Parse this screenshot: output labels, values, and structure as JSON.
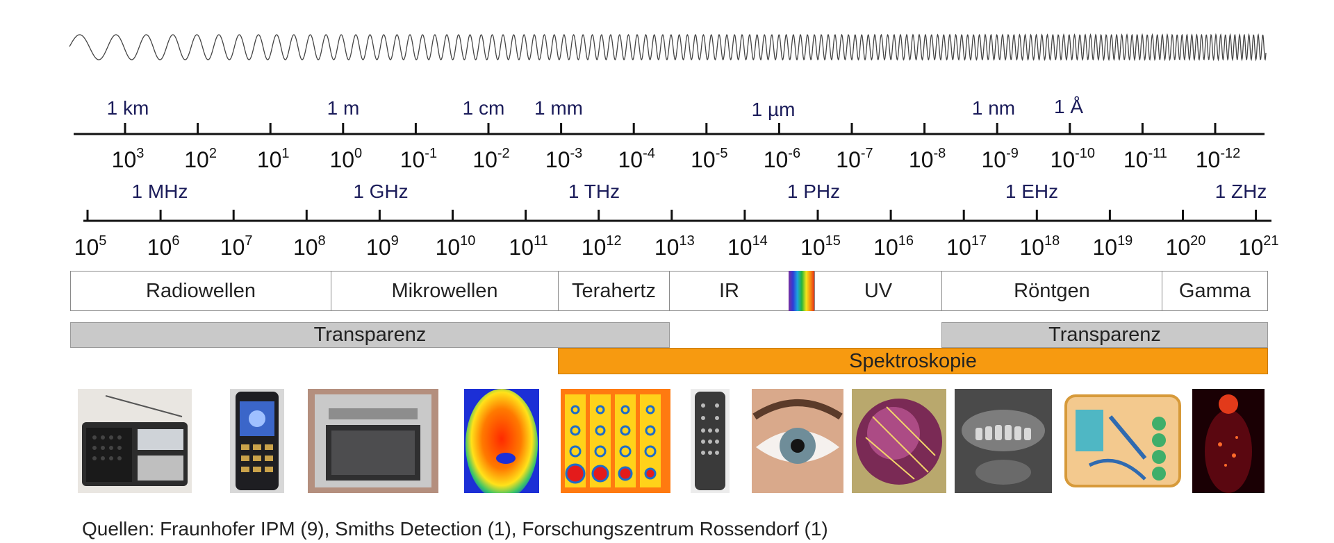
{
  "wavelength_units": [
    {
      "label": "1 km"
    },
    {
      "label": "1 m"
    },
    {
      "label": "1 cm"
    },
    {
      "label": "1 mm"
    },
    {
      "label": "1 µm"
    },
    {
      "label": "1 nm"
    },
    {
      "label": "1 Å"
    }
  ],
  "wavelength_exponents": [
    "3",
    "2",
    "1",
    "0",
    "-1",
    "-2",
    "-3",
    "-4",
    "-5",
    "-6",
    "-7",
    "-8",
    "-9",
    "-10",
    "-11",
    "-12"
  ],
  "frequency_units": [
    {
      "label": "1 MHz"
    },
    {
      "label": "1 GHz"
    },
    {
      "label": "1 THz"
    },
    {
      "label": "1 PHz"
    },
    {
      "label": "1 EHz"
    },
    {
      "label": "1 ZHz"
    }
  ],
  "frequency_exponents": [
    "5",
    "6",
    "7",
    "8",
    "9",
    "10",
    "11",
    "12",
    "13",
    "14",
    "15",
    "16",
    "17",
    "18",
    "19",
    "20",
    "21"
  ],
  "power_base": "10",
  "bands": [
    {
      "label": "Radiowellen"
    },
    {
      "label": "Mikrowellen"
    },
    {
      "label": "Terahertz"
    },
    {
      "label": "IR"
    },
    {
      "label": "UV"
    },
    {
      "label": "Röntgen"
    },
    {
      "label": "Gamma"
    }
  ],
  "bars": {
    "transparenz_left": "Transparenz",
    "transparenz_right": "Transparenz",
    "spektroskopie": "Spektroskopie"
  },
  "visible_spectrum_colors": [
    "#7b2fa0",
    "#2f3bd6",
    "#1da3e0",
    "#27b53a",
    "#f2e51b",
    "#f58a12",
    "#e0221a"
  ],
  "band_line_color": "#8a8a8a",
  "photos": [
    {
      "icon": "radio-image"
    },
    {
      "icon": "mobile-phone-image"
    },
    {
      "icon": "microwave-oven-image"
    },
    {
      "icon": "thermal-image"
    },
    {
      "icon": "terahertz-scan-image"
    },
    {
      "icon": "remote-control-image"
    },
    {
      "icon": "eye-image"
    },
    {
      "icon": "uv-wafer-image"
    },
    {
      "icon": "dental-xray-image"
    },
    {
      "icon": "luggage-xray-image"
    },
    {
      "icon": "pet-scan-image"
    }
  ],
  "sources": "Quellen: Fraunhofer IPM (9), Smiths Detection (1), Forschungszentrum Rossendorf (1)"
}
